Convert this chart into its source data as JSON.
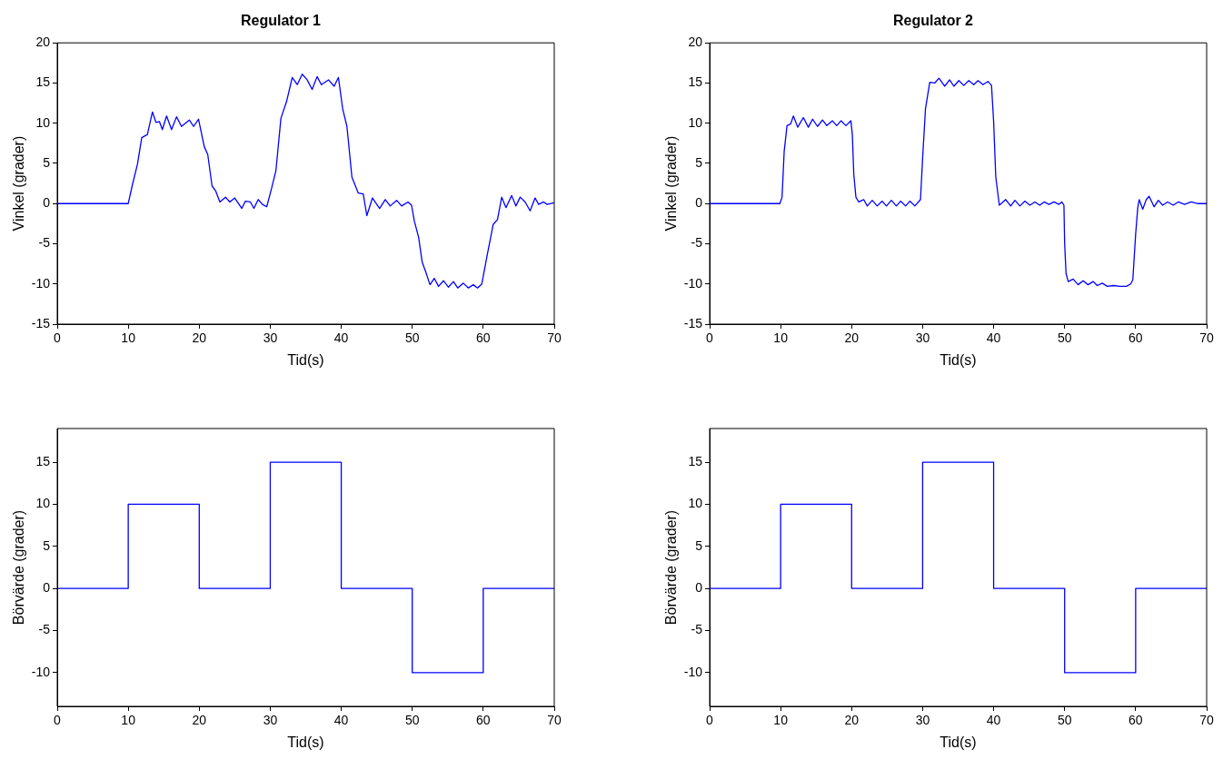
{
  "chart_data": [
    {
      "type": "line",
      "title": "Regulator 1",
      "xlabel": "Tid(s)",
      "ylabel": "Vinkel (grader)",
      "xlim": [
        0,
        70
      ],
      "xticks": [
        0,
        10,
        20,
        30,
        40,
        50,
        60,
        70
      ],
      "ylim": [
        -15,
        20
      ],
      "yticks": [
        -15,
        -10,
        -5,
        0,
        5,
        10,
        15,
        20
      ],
      "marker": "none",
      "legend": false,
      "series": [
        {
          "color": "#0000ff",
          "x": [
            0,
            10,
            10.6,
            11.3,
            11.9,
            12.7,
            13.4,
            13.9,
            14.4,
            14.8,
            15.4,
            16.1,
            16.8,
            17.5,
            18.6,
            19.2,
            19.9,
            20.7,
            21.2,
            21.8,
            22.3,
            22.9,
            23.7,
            24.3,
            25.0,
            26.0,
            26.5,
            27.2,
            27.7,
            28.3,
            28.9,
            29.5,
            30.1,
            30.8,
            31.5,
            32.3,
            33.1,
            33.8,
            34.5,
            35.2,
            35.9,
            36.6,
            37.2,
            38.2,
            39.0,
            39.6,
            40.2,
            40.8,
            41.5,
            42.4,
            43.1,
            43.6,
            44.4,
            45.4,
            46.2,
            46.9,
            47.8,
            48.5,
            49.4,
            49.9,
            50.3,
            50.9,
            51.4,
            51.9,
            52.5,
            53.1,
            53.7,
            54.4,
            55.1,
            55.8,
            56.4,
            57.2,
            57.9,
            58.6,
            59.2,
            59.8,
            60.6,
            61.4,
            62.0,
            62.6,
            63.2,
            64.0,
            64.6,
            65.2,
            65.9,
            66.6,
            67.3,
            67.8,
            68.5,
            69.0,
            70
          ],
          "values": [
            0,
            0,
            2.4,
            4.9,
            8.2,
            8.6,
            11.4,
            10.1,
            10.2,
            9.2,
            10.9,
            9.2,
            10.8,
            9.6,
            10.4,
            9.6,
            10.5,
            7.1,
            6.1,
            2.2,
            1.6,
            0.2,
            0.8,
            0.2,
            0.7,
            -0.6,
            0.3,
            0.2,
            -0.6,
            0.5,
            -0.1,
            -0.4,
            1.6,
            4.1,
            10.6,
            12.7,
            15.7,
            14.8,
            16.1,
            15.4,
            14.2,
            15.8,
            14.8,
            15.4,
            14.6,
            15.7,
            11.8,
            9.6,
            3.3,
            1.3,
            1.2,
            -1.5,
            0.7,
            -0.6,
            0.5,
            -0.3,
            0.4,
            -0.3,
            0.2,
            -0.2,
            -2.2,
            -4.2,
            -7.3,
            -8.5,
            -10.1,
            -9.3,
            -10.3,
            -9.6,
            -10.4,
            -9.7,
            -10.5,
            -9.9,
            -10.5,
            -10.1,
            -10.5,
            -10.0,
            -6.2,
            -2.6,
            -2.0,
            0.8,
            -0.5,
            1.0,
            -0.3,
            0.8,
            0.2,
            -0.9,
            0.7,
            -0.1,
            0.2,
            -0.1,
            0.1
          ]
        }
      ]
    },
    {
      "type": "line",
      "title": "Regulator 2",
      "xlabel": "Tid(s)",
      "ylabel": "Vinkel (grader)",
      "xlim": [
        0,
        70
      ],
      "xticks": [
        0,
        10,
        20,
        30,
        40,
        50,
        60,
        70
      ],
      "ylim": [
        -15,
        20
      ],
      "yticks": [
        -15,
        -10,
        -5,
        0,
        5,
        10,
        15,
        20
      ],
      "marker": "none",
      "legend": false,
      "series": [
        {
          "color": "#0000ff",
          "x": [
            0,
            9.9,
            10.2,
            10.5,
            10.9,
            11.4,
            11.8,
            12.4,
            13.2,
            13.9,
            14.5,
            15.2,
            15.9,
            16.5,
            17.3,
            17.9,
            18.5,
            19.2,
            19.9,
            20.1,
            20.3,
            20.6,
            21.0,
            21.7,
            22.2,
            22.9,
            23.6,
            24.3,
            24.9,
            25.6,
            26.3,
            26.9,
            27.6,
            28.2,
            28.9,
            29.7,
            30.0,
            30.4,
            31.0,
            31.7,
            32.3,
            33.1,
            33.8,
            34.4,
            35.1,
            35.8,
            36.5,
            37.2,
            37.8,
            38.5,
            39.2,
            39.7,
            40.0,
            40.3,
            40.8,
            41.2,
            41.7,
            42.4,
            43.0,
            43.7,
            44.4,
            45.1,
            45.8,
            46.5,
            47.1,
            47.8,
            48.5,
            49.2,
            49.6,
            49.9,
            50.0,
            50.2,
            50.5,
            51.2,
            51.9,
            52.6,
            53.3,
            54.0,
            54.6,
            55.3,
            56.0,
            56.9,
            57.8,
            58.7,
            59.3,
            59.6,
            60.0,
            60.3,
            60.5,
            61.0,
            61.5,
            61.9,
            62.6,
            63.2,
            63.8,
            64.5,
            65.3,
            66.0,
            66.9,
            67.8,
            68.7,
            70
          ],
          "values": [
            0,
            0,
            0.8,
            6.5,
            9.7,
            9.9,
            10.9,
            9.5,
            10.7,
            9.5,
            10.5,
            9.6,
            10.4,
            9.7,
            10.3,
            9.7,
            10.3,
            9.7,
            10.3,
            8.6,
            3.7,
            0.8,
            0.2,
            0.5,
            -0.3,
            0.4,
            -0.3,
            0.3,
            -0.3,
            0.4,
            -0.3,
            0.3,
            -0.3,
            0.3,
            -0.3,
            0.5,
            5.7,
            11.8,
            15.1,
            15.0,
            15.6,
            14.6,
            15.4,
            14.6,
            15.3,
            14.7,
            15.3,
            14.8,
            15.3,
            14.8,
            15.2,
            14.7,
            10.2,
            3.3,
            -0.2,
            0.1,
            0.5,
            -0.3,
            0.4,
            -0.3,
            0.3,
            -0.2,
            0.2,
            -0.2,
            0.2,
            -0.1,
            0.2,
            -0.1,
            0.2,
            -0.2,
            -5.0,
            -8.7,
            -9.7,
            -9.4,
            -10.1,
            -9.6,
            -10.1,
            -9.7,
            -10.2,
            -9.9,
            -10.3,
            -10.2,
            -10.3,
            -10.3,
            -10.0,
            -9.5,
            -3.8,
            -0.5,
            0.5,
            -0.7,
            0.5,
            0.9,
            -0.4,
            0.4,
            -0.2,
            0.2,
            -0.2,
            0.2,
            -0.1,
            0.2,
            0,
            0
          ]
        }
      ]
    },
    {
      "type": "step",
      "xlabel": "Tid(s)",
      "ylabel": "Börvärde (grader)",
      "xlim": [
        0,
        70
      ],
      "xticks": [
        0,
        10,
        20,
        30,
        40,
        50,
        60,
        70
      ],
      "ylim": [
        -14,
        19
      ],
      "yticks": [
        -10,
        -5,
        0,
        5,
        10,
        15
      ],
      "marker": "none",
      "legend": false,
      "series": [
        {
          "color": "#0000ff",
          "x": [
            0,
            10,
            20,
            30,
            40,
            50,
            60,
            70
          ],
          "values": [
            0,
            10,
            0,
            15,
            0,
            -10,
            0,
            0
          ]
        }
      ]
    },
    {
      "type": "step",
      "xlabel": "Tid(s)",
      "ylabel": "Börvärde (grader)",
      "xlim": [
        0,
        70
      ],
      "xticks": [
        0,
        10,
        20,
        30,
        40,
        50,
        60,
        70
      ],
      "ylim": [
        -14,
        19
      ],
      "yticks": [
        -10,
        -5,
        0,
        5,
        10,
        15
      ],
      "marker": "none",
      "legend": false,
      "series": [
        {
          "color": "#0000ff",
          "x": [
            0,
            10,
            20,
            30,
            40,
            50,
            60,
            70
          ],
          "values": [
            0,
            10,
            0,
            15,
            0,
            -10,
            0,
            0
          ]
        }
      ]
    }
  ]
}
